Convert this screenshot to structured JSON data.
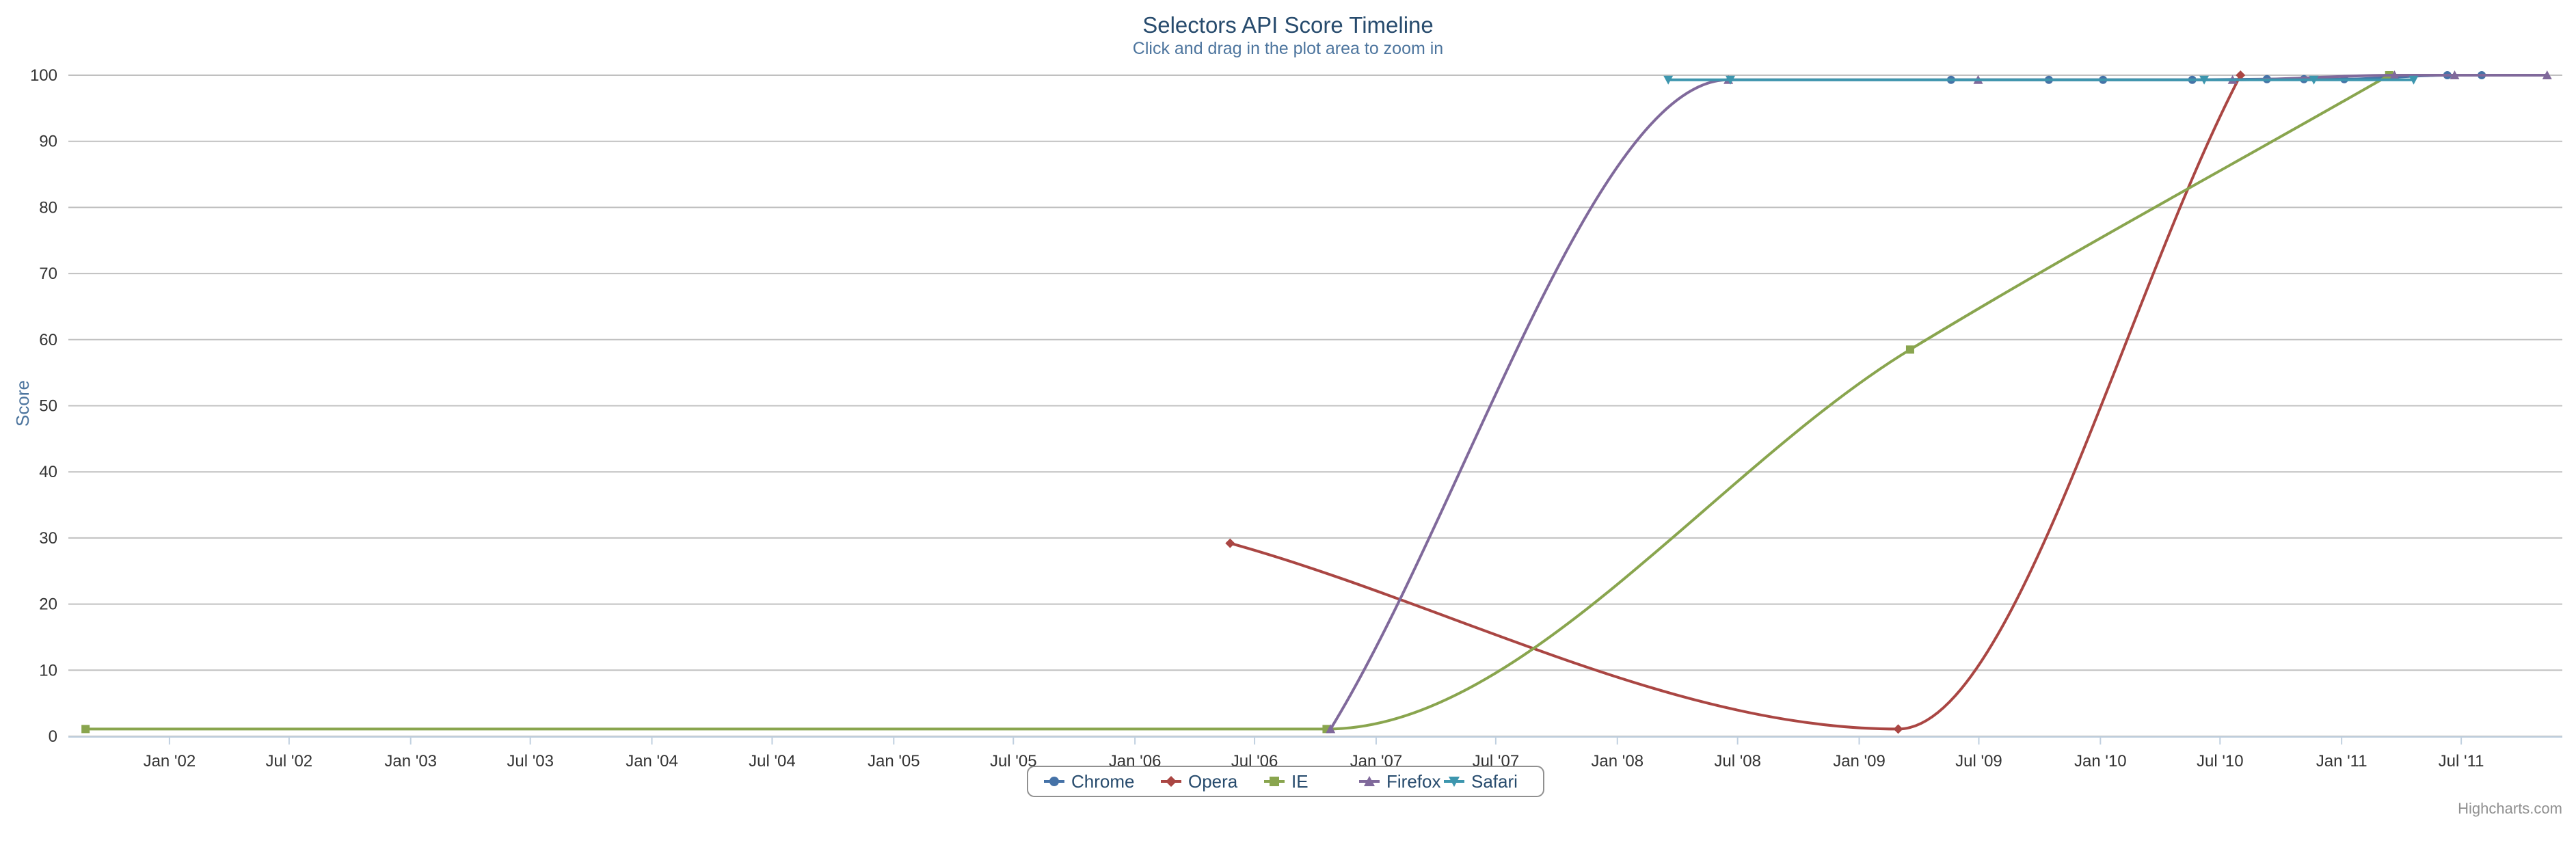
{
  "chart_data": {
    "type": "line",
    "title": "Selectors API Score Timeline",
    "subtitle": "Click and drag in the plot area to zoom in",
    "ylabel": "Score",
    "xlabel": "",
    "xlim": [
      "2001-08-01",
      "2011-12-01"
    ],
    "ylim": [
      0,
      100
    ],
    "y_ticks": [
      0,
      10,
      20,
      30,
      40,
      50,
      60,
      70,
      80,
      90,
      100
    ],
    "x_ticks": [
      {
        "date": "2002-01-01",
        "label": "Jan '02"
      },
      {
        "date": "2002-07-01",
        "label": "Jul '02"
      },
      {
        "date": "2003-01-01",
        "label": "Jan '03"
      },
      {
        "date": "2003-07-01",
        "label": "Jul '03"
      },
      {
        "date": "2004-01-01",
        "label": "Jan '04"
      },
      {
        "date": "2004-07-01",
        "label": "Jul '04"
      },
      {
        "date": "2005-01-01",
        "label": "Jan '05"
      },
      {
        "date": "2005-07-01",
        "label": "Jul '05"
      },
      {
        "date": "2006-01-01",
        "label": "Jan '06"
      },
      {
        "date": "2006-07-01",
        "label": "Jul '06"
      },
      {
        "date": "2007-01-01",
        "label": "Jan '07"
      },
      {
        "date": "2007-07-01",
        "label": "Jul '07"
      },
      {
        "date": "2008-01-01",
        "label": "Jan '08"
      },
      {
        "date": "2008-07-01",
        "label": "Jul '08"
      },
      {
        "date": "2009-01-01",
        "label": "Jan '09"
      },
      {
        "date": "2009-07-01",
        "label": "Jul '09"
      },
      {
        "date": "2010-01-01",
        "label": "Jan '10"
      },
      {
        "date": "2010-07-01",
        "label": "Jul '10"
      },
      {
        "date": "2011-01-01",
        "label": "Jan '11"
      },
      {
        "date": "2011-07-01",
        "label": "Jul '11"
      }
    ],
    "grid": true,
    "legend_position": "bottom-center",
    "credits": "Highcharts.com",
    "series": [
      {
        "name": "Chrome",
        "color": "#4572a7",
        "marker": "circle",
        "points": [
          {
            "x": "2009-05-20",
            "y": 99.3
          },
          {
            "x": "2009-10-15",
            "y": 99.3
          },
          {
            "x": "2010-01-05",
            "y": 99.3
          },
          {
            "x": "2010-05-20",
            "y": 99.3
          },
          {
            "x": "2010-09-10",
            "y": 99.4
          },
          {
            "x": "2010-11-05",
            "y": 99.4
          },
          {
            "x": "2011-01-05",
            "y": 99.4
          },
          {
            "x": "2011-06-10",
            "y": 100
          },
          {
            "x": "2011-08-01",
            "y": 100
          }
        ]
      },
      {
        "name": "Opera",
        "color": "#aa4643",
        "marker": "diamond",
        "points": [
          {
            "x": "2006-05-25",
            "y": 29.2
          },
          {
            "x": "2009-03-01",
            "y": 1.1
          },
          {
            "x": "2010-08-01",
            "y": 100
          }
        ]
      },
      {
        "name": "IE",
        "color": "#89a54e",
        "marker": "square",
        "points": [
          {
            "x": "2001-08-27",
            "y": 1.1
          },
          {
            "x": "2006-10-18",
            "y": 1.1
          },
          {
            "x": "2009-03-19",
            "y": 58.5
          },
          {
            "x": "2011-03-14",
            "y": 100
          }
        ]
      },
      {
        "name": "Firefox",
        "color": "#80699b",
        "marker": "triangle",
        "points": [
          {
            "x": "2006-10-24",
            "y": 1.1
          },
          {
            "x": "2008-06-17",
            "y": 99.3
          },
          {
            "x": "2009-06-30",
            "y": 99.3
          },
          {
            "x": "2010-07-20",
            "y": 99.3
          },
          {
            "x": "2011-03-22",
            "y": 100
          },
          {
            "x": "2011-06-21",
            "y": 100
          },
          {
            "x": "2011-11-08",
            "y": 100
          }
        ]
      },
      {
        "name": "Safari",
        "color": "#3d96ae",
        "marker": "triangle-down",
        "points": [
          {
            "x": "2008-03-18",
            "y": 99.3
          },
          {
            "x": "2008-06-20",
            "y": 99.3
          },
          {
            "x": "2010-06-07",
            "y": 99.3
          },
          {
            "x": "2010-11-20",
            "y": 99.3
          },
          {
            "x": "2011-04-20",
            "y": 99.3
          }
        ]
      }
    ]
  }
}
